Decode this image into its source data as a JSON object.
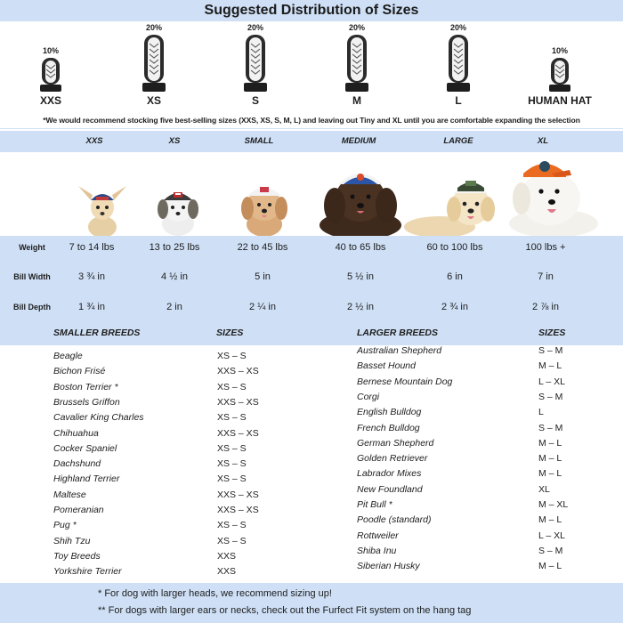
{
  "title": "Suggested Distribution of Sizes",
  "distribution": [
    {
      "size": "XXS",
      "percent": "10%",
      "share": 10
    },
    {
      "size": "XS",
      "percent": "20%",
      "share": 20
    },
    {
      "size": "S",
      "percent": "20%",
      "share": 20
    },
    {
      "size": "M",
      "percent": "20%",
      "share": 20
    },
    {
      "size": "L",
      "percent": "20%",
      "share": 20
    },
    {
      "size": "HUMAN HAT",
      "percent": "10%",
      "share": 10
    }
  ],
  "recommendation": "*We would recommend stocking five best-selling sizes (XXS, XS, S, M, L) and leaving out Tiny and XL until you are comfortable expanding the selection",
  "size_columns": [
    "XXS",
    "XS",
    "SMALL",
    "MEDIUM",
    "LARGE",
    "XL"
  ],
  "measurements": {
    "weight": {
      "label": "Weight",
      "values": [
        "7 to 14 lbs",
        "13 to 25 lbs",
        "22 to 45 lbs",
        "40 to 65 lbs",
        "60 to 100 lbs",
        "100 lbs +"
      ]
    },
    "bill_width": {
      "label": "Bill Width",
      "values": [
        "3 ¾ in",
        "4 ½ in",
        "5 in",
        "5 ½ in",
        "6 in",
        "7 in"
      ]
    },
    "bill_depth": {
      "label": "Bill Depth",
      "values": [
        "1 ¾ in",
        "2 in",
        "2 ¼ in",
        "2 ½ in",
        "2 ¾ in",
        "2 ⅞ in"
      ]
    }
  },
  "smaller_breeds": {
    "header": "SMALLER BREEDS",
    "sizes_header": "SIZES",
    "rows": [
      {
        "breed": "Beagle",
        "size": "XS – S"
      },
      {
        "breed": "Bichon Frisé",
        "size": "XXS – XS"
      },
      {
        "breed": "Boston Terrier *",
        "size": "XS – S"
      },
      {
        "breed": "Brussels Griffon",
        "size": "XXS – XS"
      },
      {
        "breed": "Cavalier King Charles",
        "size": "XS – S"
      },
      {
        "breed": "Chihuahua",
        "size": "XXS – XS"
      },
      {
        "breed": "Cocker Spaniel",
        "size": "XS – S"
      },
      {
        "breed": "Dachshund",
        "size": "XS – S"
      },
      {
        "breed": "Highland Terrier",
        "size": "XS – S"
      },
      {
        "breed": "Maltese",
        "size": "XXS – XS"
      },
      {
        "breed": "Pomeranian",
        "size": "XXS – XS"
      },
      {
        "breed": "Pug *",
        "size": "XS – S"
      },
      {
        "breed": "Shih Tzu",
        "size": "XS – S"
      },
      {
        "breed": "Toy Breeds",
        "size": "XXS"
      },
      {
        "breed": "Yorkshire Terrier",
        "size": "XXS"
      }
    ]
  },
  "larger_breeds": {
    "header": "LARGER BREEDS",
    "sizes_header": "SIZES",
    "rows": [
      {
        "breed": "Australian Shepherd",
        "size": "S – M"
      },
      {
        "breed": "Basset Hound",
        "size": "M – L"
      },
      {
        "breed": "Bernese Mountain Dog",
        "size": "L – XL"
      },
      {
        "breed": "Corgi",
        "size": "S – M"
      },
      {
        "breed": "English Bulldog",
        "size": "L"
      },
      {
        "breed": "French Bulldog",
        "size": "S – M"
      },
      {
        "breed": "German Shepherd",
        "size": "M – L"
      },
      {
        "breed": "Golden Retriever",
        "size": "M – L"
      },
      {
        "breed": "Labrador Mixes",
        "size": "M – L"
      },
      {
        "breed": "New Foundland",
        "size": "XL"
      },
      {
        "breed": "Pit Bull *",
        "size": "M – XL"
      },
      {
        "breed": "Poodle (standard)",
        "size": "M – L"
      },
      {
        "breed": "Rottweiler",
        "size": "L – XL"
      },
      {
        "breed": "Shiba Inu",
        "size": "S – M"
      },
      {
        "breed": "Siberian Husky",
        "size": "M – L"
      }
    ]
  },
  "footnotes": [
    "* For dog with larger heads, we recommend sizing up!",
    "** For dogs with larger ears or necks, check out the Furfect Fit system on the hang tag"
  ],
  "colors": {
    "band": "#cfe0f6",
    "cap_dark": "#2b2b2b",
    "cap_light": "#f2f2f2"
  }
}
